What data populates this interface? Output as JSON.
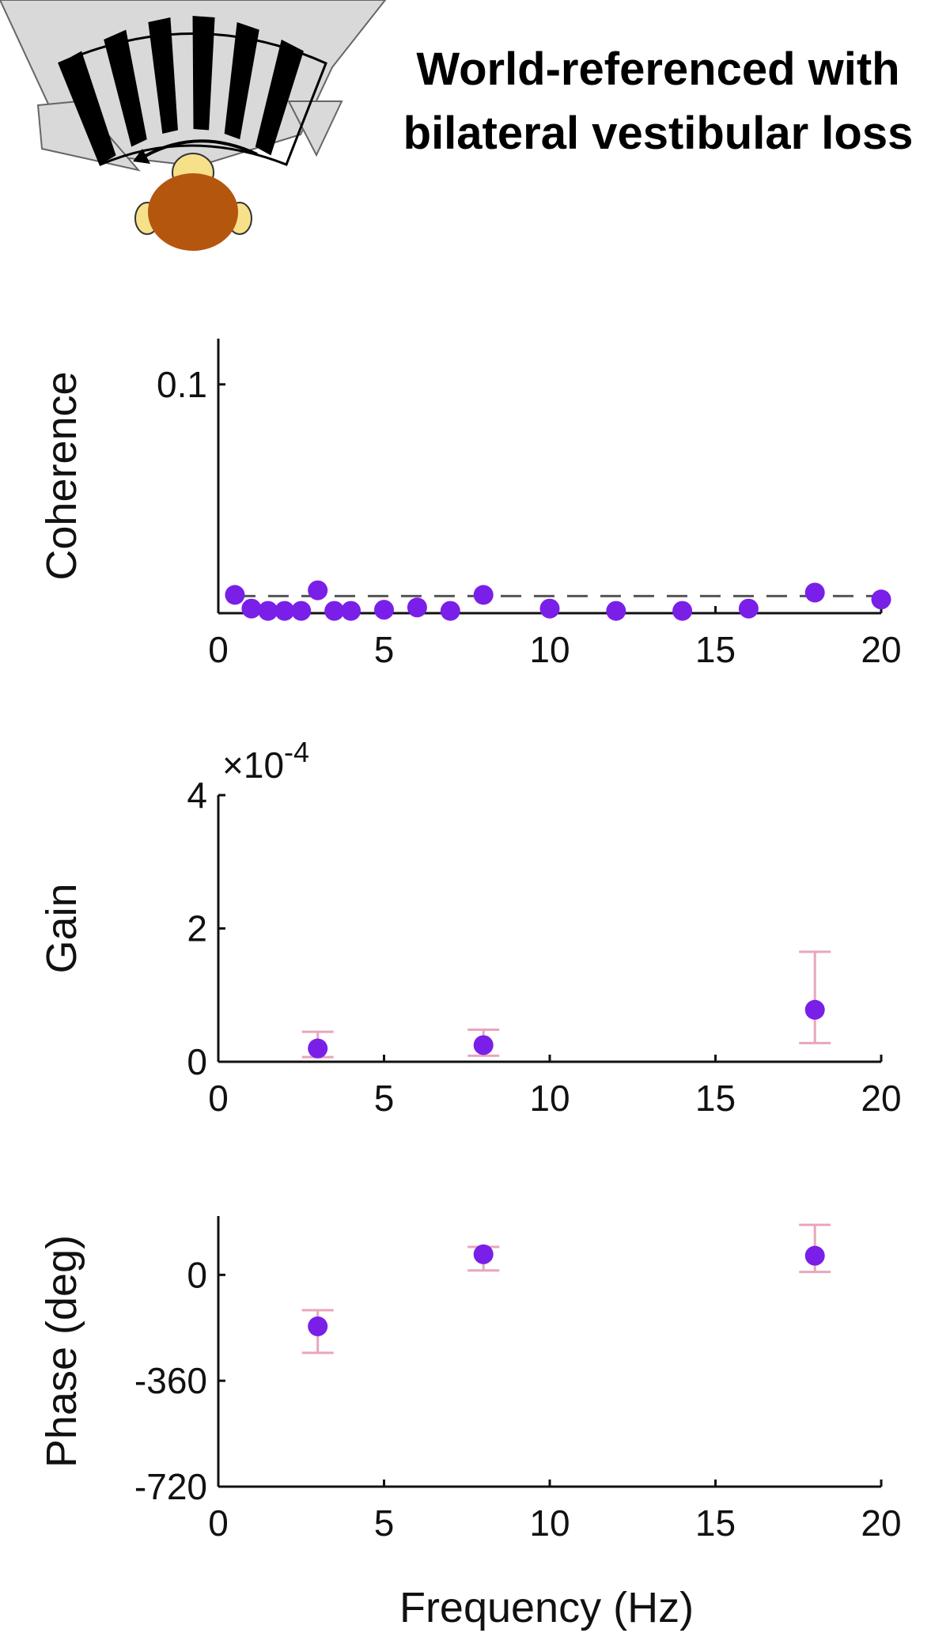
{
  "title": {
    "line1": "World-referenced with",
    "line2": "bilateral vestibular loss"
  },
  "colors": {
    "marker": "#7a1fe8",
    "errorbar": "#e8a6bd",
    "axis": "#111111",
    "threshold": "#555555",
    "monkey_face": "#b5560f",
    "monkey_skin": "#f7e08a",
    "drum_gray": "#d9d9d9"
  },
  "icons": [
    "monkey-head-icon",
    "striped-drum-icon",
    "rotation-arrow-icon"
  ],
  "shared_xlabel": "Frequency (Hz)",
  "chart_data": [
    {
      "type": "scatter",
      "name": "coherence",
      "ylabel": "Coherence",
      "xlim": [
        0,
        20
      ],
      "ylim": [
        0,
        0.12
      ],
      "xticks": [
        "0",
        "5",
        "10",
        "15",
        "20"
      ],
      "yticks": [
        {
          "value": 0.1,
          "label": "0.1"
        }
      ],
      "threshold": 0.0075,
      "x": [
        0.5,
        1,
        1.5,
        2,
        2.5,
        3,
        3.5,
        4,
        5,
        6,
        7,
        8,
        10,
        12,
        14,
        16,
        18,
        20
      ],
      "y": [
        0.008,
        0.002,
        0.001,
        0.001,
        0.001,
        0.01,
        0.001,
        0.001,
        0.0015,
        0.0025,
        0.001,
        0.008,
        0.002,
        0.001,
        0.001,
        0.002,
        0.009,
        0.006
      ]
    },
    {
      "type": "scatter",
      "name": "gain",
      "ylabel": "Gain",
      "multiplier": "×10",
      "multiplier_exp": "-4",
      "xlim": [
        0,
        20
      ],
      "ylim": [
        0,
        4
      ],
      "xticks": [
        "0",
        "5",
        "10",
        "15",
        "20"
      ],
      "yticks": [
        {
          "value": 0,
          "label": "0"
        },
        {
          "value": 2,
          "label": "2"
        },
        {
          "value": 4,
          "label": "4"
        }
      ],
      "x": [
        3,
        8,
        18
      ],
      "y": [
        0.2,
        0.25,
        0.78
      ],
      "err_low": [
        0.07,
        0.09,
        0.28
      ],
      "err_high": [
        0.45,
        0.48,
        1.65
      ]
    },
    {
      "type": "scatter",
      "name": "phase",
      "ylabel": "Phase (deg)",
      "xlabel": "Frequency (Hz)",
      "xlim": [
        0,
        20
      ],
      "ylim": [
        -720,
        200
      ],
      "xticks": [
        "0",
        "5",
        "10",
        "15",
        "20"
      ],
      "yticks": [
        {
          "value": 0,
          "label": "0"
        },
        {
          "value": -360,
          "label": "-360"
        },
        {
          "value": -720,
          "label": "-720"
        }
      ],
      "x": [
        3,
        8,
        18
      ],
      "y": [
        -175,
        70,
        65
      ],
      "err_low": [
        -265,
        15,
        10
      ],
      "err_high": [
        -120,
        95,
        170
      ]
    }
  ]
}
